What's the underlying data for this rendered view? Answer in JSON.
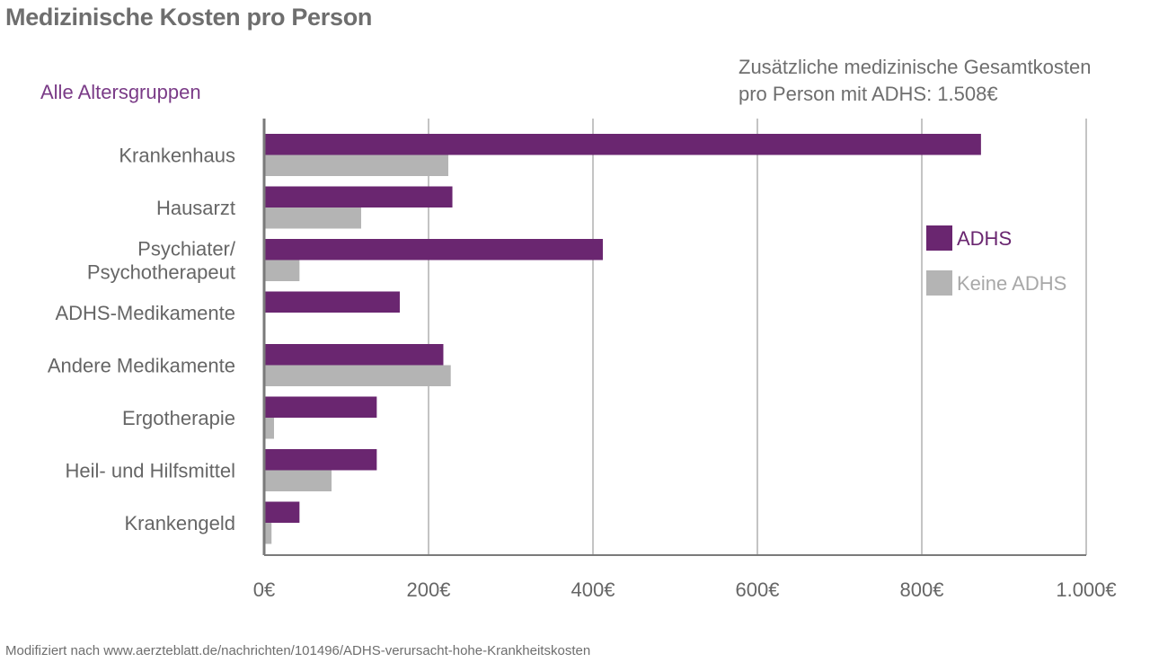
{
  "chart_data": {
    "type": "bar",
    "orientation": "horizontal",
    "title": "Medizinische Kosten pro Person",
    "subtitle": "Alle Altersgruppen",
    "annotation": "Zusätzliche medizinische Gesamtkosten pro Person mit ADHS: 1.508€",
    "annotation_lines": [
      "Zusätzliche medizinische Gesamtkosten",
      "pro Person mit ADHS: 1.508€"
    ],
    "categories": [
      [
        "Krankenhaus"
      ],
      [
        "Hausarzt"
      ],
      [
        "Psychiater/",
        "Psychotherapeut"
      ],
      [
        "ADHS-Medikamente"
      ],
      [
        "Andere Medikamente"
      ],
      [
        "Ergotherapie"
      ],
      [
        "Heil- und Hilfsmittel"
      ],
      [
        "Krankengeld"
      ]
    ],
    "series": [
      {
        "name": "ADHS",
        "color": "#6a2670",
        "values": [
          872,
          229,
          412,
          165,
          218,
          137,
          137,
          43
        ]
      },
      {
        "name": "Keine ADHS",
        "color": "#b4b4b4",
        "values": [
          224,
          118,
          43,
          0,
          227,
          12,
          82,
          9
        ]
      }
    ],
    "xlim": [
      0,
      1000
    ],
    "ticks": [
      0,
      200,
      400,
      600,
      800,
      1000
    ],
    "tick_labels": [
      "0€",
      "200€",
      "400€",
      "600€",
      "800€",
      "1.000€"
    ],
    "grid": true,
    "legend_position": "right",
    "source": "Modifiziert nach www.aerzteblatt.de/nachrichten/101496/ADHS-verursacht-hohe-Krankheitskosten"
  }
}
